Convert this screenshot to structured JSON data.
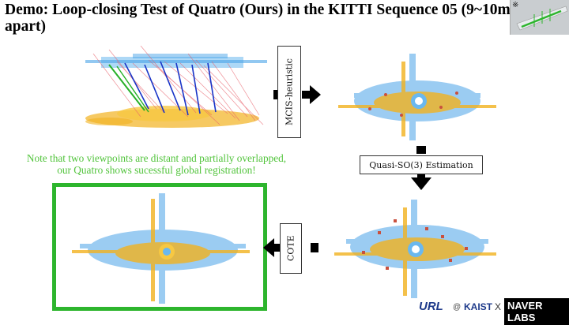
{
  "slide": {
    "title": "Demo: Loop-closing Test of Quatro (Ours) in the KITTI Sequence 05 (9~10m apart)",
    "thumbnail_mark": "※"
  },
  "note": {
    "line1": "Note that two viewpoints are distant and partially overlapped,",
    "line2": "our Quatro shows sucessful global registration!"
  },
  "steps": {
    "mcis": "MCIS-heuristic",
    "quasi": "Quasi-SO(3) Estimation",
    "cote": "COTE"
  },
  "logos": {
    "url": "URL",
    "at": "@",
    "kaist": "KAIST",
    "x": "X",
    "naver": "NAVER LABS"
  },
  "colors": {
    "cloud_blue": "#4aa3e8",
    "cloud_orange": "#f2b21f",
    "frame_green": "#2db52d",
    "note_green": "#52c43c"
  }
}
